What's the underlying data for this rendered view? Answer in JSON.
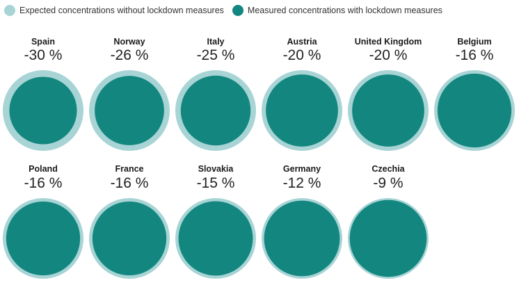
{
  "legend": {
    "expected_label": "Expected concentrations without lockdown measures",
    "measured_label": "Measured concentrations with lockdown measures"
  },
  "colors": {
    "expected": "#a8d4d6",
    "measured": "#13877f"
  },
  "chart_data": {
    "type": "proportional-circles",
    "series": [
      {
        "name": "Expected concentrations without lockdown measures",
        "values": [
          100,
          100,
          100,
          100,
          100,
          100,
          100,
          100,
          100,
          100,
          100
        ]
      },
      {
        "name": "Measured concentrations with lockdown measures",
        "values": [
          70,
          74,
          75,
          80,
          80,
          84,
          84,
          84,
          85,
          88,
          91
        ]
      }
    ],
    "categories": [
      "Spain",
      "Norway",
      "Italy",
      "Austria",
      "United Kingdom",
      "Belgium",
      "Poland",
      "France",
      "Slovakia",
      "Germany",
      "Czechia"
    ],
    "change_labels": [
      "-30 %",
      "-26 %",
      "-25 %",
      "-20 %",
      "-20 %",
      "-16 %",
      "-16 %",
      "-16 %",
      "-15 %",
      "-12 %",
      "-9 %"
    ],
    "change_values": [
      -30,
      -26,
      -25,
      -20,
      -20,
      -16,
      -16,
      -16,
      -15,
      -12,
      -9
    ]
  }
}
